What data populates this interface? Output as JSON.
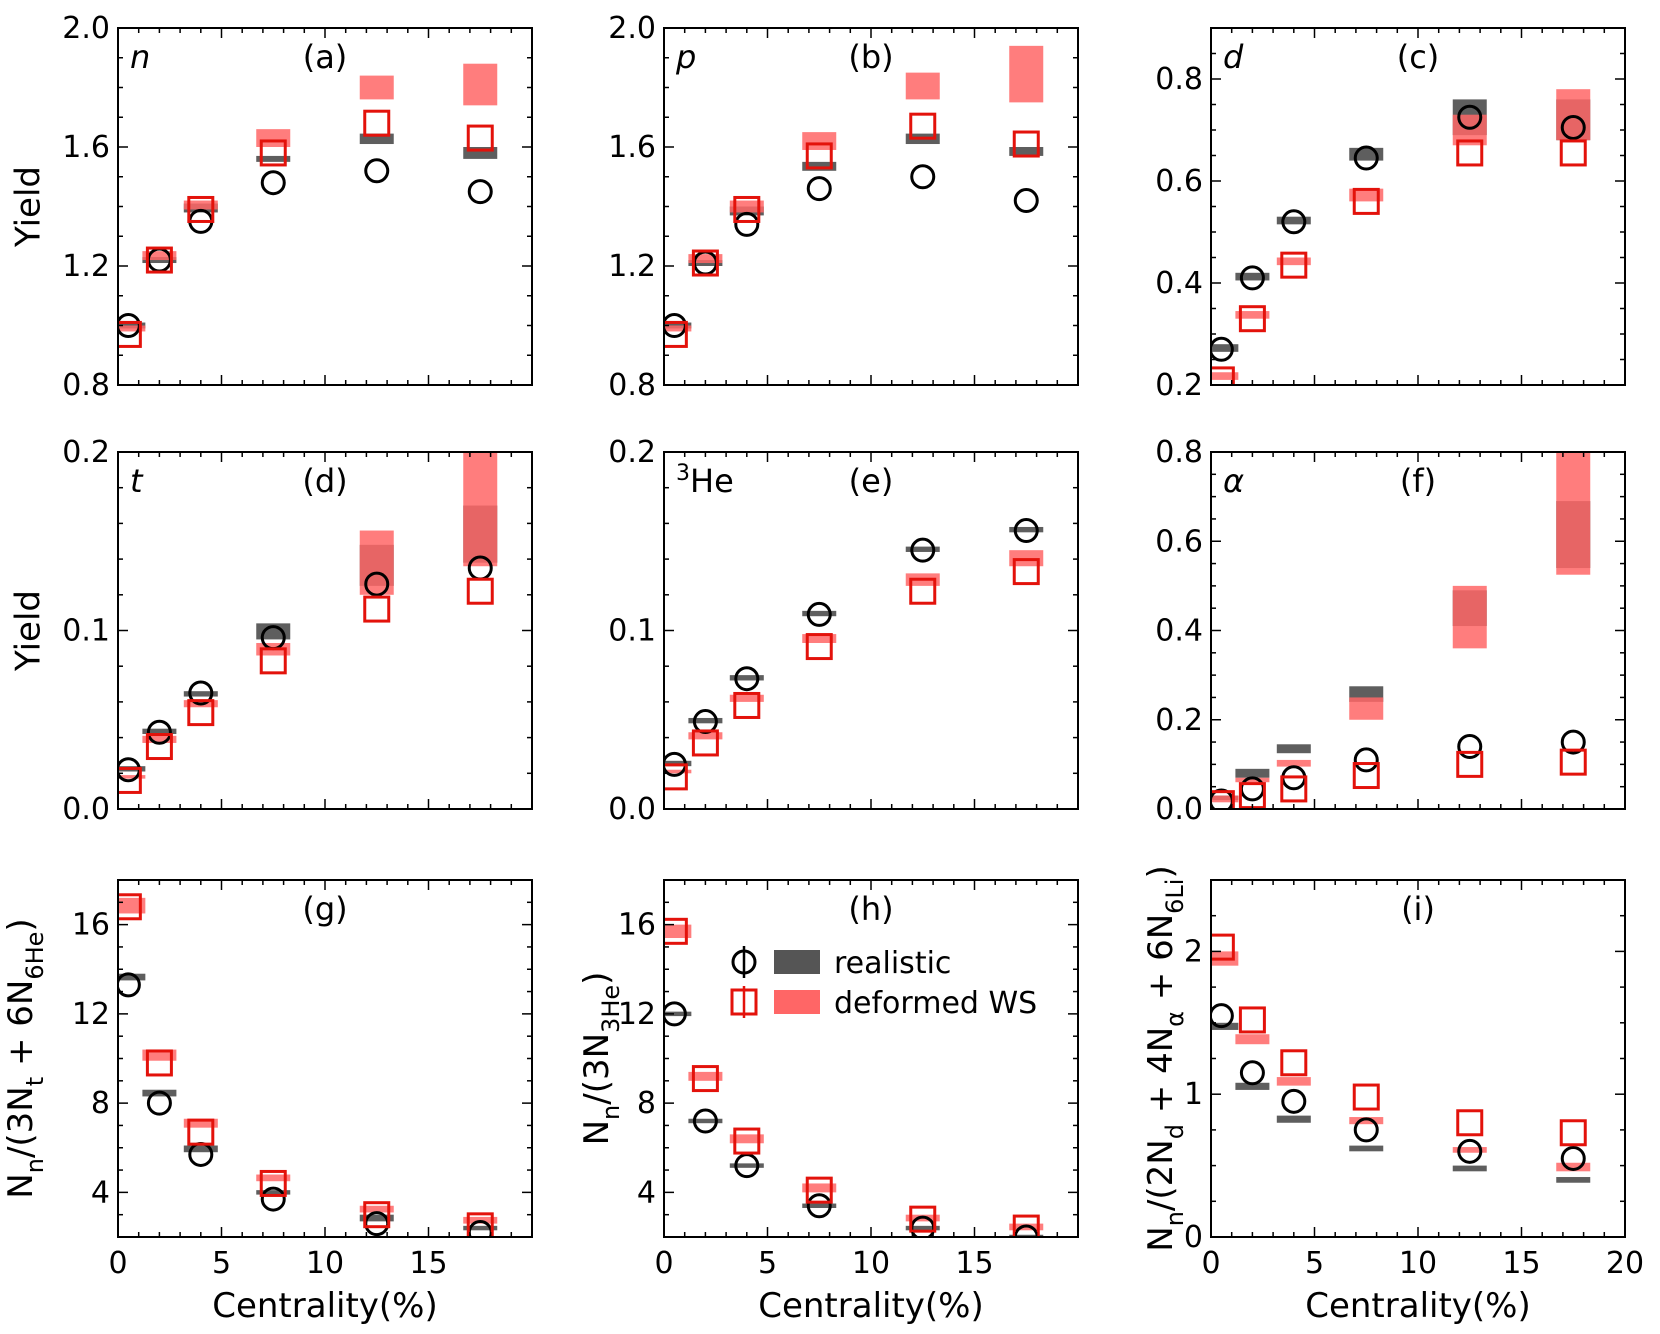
{
  "figure": {
    "x_axis_title": "Centrality(%)",
    "colors": {
      "realistic_marker": "#000000",
      "realistic_band": "#555555",
      "deformed_marker": "#e3120b",
      "deformed_band": "#ff6666",
      "frame": "#000000"
    },
    "legend": {
      "panel": "h",
      "placement": "center-right",
      "entries": [
        {
          "label": "realistic",
          "marker": "circle",
          "color": "#000000",
          "band_color": "#555555"
        },
        {
          "label": "deformed WS",
          "marker": "square",
          "color": "#e3120b",
          "band_color": "#ff6666"
        }
      ]
    }
  },
  "chart_data": [
    {
      "id": "a",
      "panel_tag": "(a)",
      "species_label": "n",
      "species_style": "italic",
      "type": "scatter",
      "ylabel": "Yield",
      "show_xticklabels": false,
      "xlim": [
        0,
        20
      ],
      "xticks": [
        0,
        5,
        10,
        15
      ],
      "xtick_labels": [
        "0",
        "5",
        "10",
        "15"
      ],
      "ylim": [
        0.8,
        2.0
      ],
      "yticks": [
        0.8,
        1.2,
        1.6,
        2.0
      ],
      "ytick_labels": [
        "0.8",
        "1.2",
        "1.6",
        "2.0"
      ],
      "minor_y": 0.1,
      "x": [
        0.5,
        2,
        4,
        7.5,
        12.5,
        17.5
      ],
      "series": [
        {
          "name": "realistic",
          "marker": "circle",
          "values": [
            1.0,
            1.22,
            1.35,
            1.48,
            1.52,
            1.45
          ],
          "band": [
            [
              0.99,
              1.01
            ],
            [
              1.21,
              1.23
            ],
            [
              1.38,
              1.41
            ],
            [
              1.55,
              1.57
            ],
            [
              1.61,
              1.645
            ],
            [
              1.56,
              1.6
            ]
          ]
        },
        {
          "name": "deformed WS",
          "marker": "square",
          "values": [
            0.97,
            1.22,
            1.39,
            1.58,
            1.68,
            1.63
          ],
          "band": [
            [
              0.98,
              1.0
            ],
            [
              1.22,
              1.25
            ],
            [
              1.39,
              1.42
            ],
            [
              1.6,
              1.66
            ],
            [
              1.76,
              1.84
            ],
            [
              1.74,
              1.88
            ]
          ]
        }
      ]
    },
    {
      "id": "b",
      "panel_tag": "(b)",
      "species_label": "p",
      "species_style": "italic",
      "type": "scatter",
      "ylabel": "",
      "show_xticklabels": false,
      "xlim": [
        0,
        20
      ],
      "xticks": [
        0,
        5,
        10,
        15
      ],
      "xtick_labels": [
        "0",
        "5",
        "10",
        "15"
      ],
      "ylim": [
        0.8,
        2.0
      ],
      "yticks": [
        0.8,
        1.2,
        1.6,
        2.0
      ],
      "ytick_labels": [
        "0.8",
        "1.2",
        "1.6",
        "2.0"
      ],
      "minor_y": 0.1,
      "x": [
        0.5,
        2,
        4,
        7.5,
        12.5,
        17.5
      ],
      "series": [
        {
          "name": "realistic",
          "marker": "circle",
          "values": [
            1.0,
            1.21,
            1.34,
            1.46,
            1.5,
            1.42
          ],
          "band": [
            [
              0.99,
              1.01
            ],
            [
              1.2,
              1.22
            ],
            [
              1.37,
              1.4
            ],
            [
              1.52,
              1.55
            ],
            [
              1.61,
              1.645
            ],
            [
              1.57,
              1.6
            ]
          ]
        },
        {
          "name": "deformed WS",
          "marker": "square",
          "values": [
            0.97,
            1.21,
            1.39,
            1.57,
            1.67,
            1.61
          ],
          "band": [
            [
              0.98,
              1.0
            ],
            [
              1.21,
              1.24
            ],
            [
              1.38,
              1.42
            ],
            [
              1.59,
              1.65
            ],
            [
              1.76,
              1.85
            ],
            [
              1.75,
              1.94
            ]
          ]
        }
      ]
    },
    {
      "id": "c",
      "panel_tag": "(c)",
      "species_label": "d",
      "species_style": "italic",
      "type": "scatter",
      "ylabel": "",
      "show_xticklabels": false,
      "xlim": [
        0,
        20
      ],
      "xticks": [
        0,
        5,
        10,
        15
      ],
      "xtick_labels": [
        "0",
        "5",
        "10",
        "15"
      ],
      "ylim": [
        0.2,
        0.9
      ],
      "yticks": [
        0.2,
        0.4,
        0.6,
        0.8
      ],
      "ytick_labels": [
        "0.2",
        "0.4",
        "0.6",
        "0.8"
      ],
      "minor_y": 0.05,
      "x": [
        0.5,
        2,
        4,
        7.5,
        12.5,
        17.5
      ],
      "series": [
        {
          "name": "realistic",
          "marker": "circle",
          "values": [
            0.27,
            0.41,
            0.52,
            0.645,
            0.725,
            0.705
          ],
          "band": [
            [
              0.265,
              0.28
            ],
            [
              0.405,
              0.42
            ],
            [
              0.515,
              0.53
            ],
            [
              0.64,
              0.665
            ],
            [
              0.69,
              0.76
            ],
            [
              0.68,
              0.76
            ]
          ]
        },
        {
          "name": "deformed WS",
          "marker": "square",
          "values": [
            0.21,
            0.33,
            0.435,
            0.56,
            0.655,
            0.655
          ],
          "band": [
            [
              0.21,
              0.225
            ],
            [
              0.33,
              0.345
            ],
            [
              0.435,
              0.45
            ],
            [
              0.56,
              0.585
            ],
            [
              0.67,
              0.73
            ],
            [
              0.68,
              0.78
            ]
          ]
        }
      ]
    },
    {
      "id": "d",
      "panel_tag": "(d)",
      "species_label": "t",
      "species_style": "italic",
      "type": "scatter",
      "ylabel": "Yield",
      "show_xticklabels": false,
      "xlim": [
        0,
        20
      ],
      "xticks": [
        0,
        5,
        10,
        15
      ],
      "xtick_labels": [
        "0",
        "5",
        "10",
        "15"
      ],
      "ylim": [
        0.0,
        0.2
      ],
      "yticks": [
        0.0,
        0.1,
        0.2
      ],
      "ytick_labels": [
        "0.0",
        "0.1",
        "0.2"
      ],
      "minor_y": 0.02,
      "x": [
        0.5,
        2,
        4,
        7.5,
        12.5,
        17.5
      ],
      "series": [
        {
          "name": "realistic",
          "marker": "circle",
          "values": [
            0.022,
            0.043,
            0.065,
            0.096,
            0.126,
            0.135
          ],
          "band": [
            [
              0.021,
              0.024
            ],
            [
              0.042,
              0.045
            ],
            [
              0.063,
              0.066
            ],
            [
              0.095,
              0.104
            ],
            [
              0.125,
              0.148
            ],
            [
              0.138,
              0.17
            ]
          ]
        },
        {
          "name": "deformed WS",
          "marker": "square",
          "values": [
            0.016,
            0.035,
            0.054,
            0.083,
            0.112,
            0.122
          ],
          "band": [
            [
              0.017,
              0.019
            ],
            [
              0.037,
              0.041
            ],
            [
              0.057,
              0.061
            ],
            [
              0.086,
              0.093
            ],
            [
              0.12,
              0.156
            ],
            [
              0.136,
              0.2
            ]
          ]
        }
      ]
    },
    {
      "id": "e",
      "panel_tag": "(e)",
      "species_label": "³He",
      "species_style": "normal",
      "type": "scatter",
      "ylabel": "",
      "show_xticklabels": false,
      "xlim": [
        0,
        20
      ],
      "xticks": [
        0,
        5,
        10,
        15
      ],
      "xtick_labels": [
        "0",
        "5",
        "10",
        "15"
      ],
      "ylim": [
        0.0,
        0.2
      ],
      "yticks": [
        0.0,
        0.1,
        0.2
      ],
      "ytick_labels": [
        "0.0",
        "0.1",
        "0.2"
      ],
      "minor_y": 0.02,
      "x": [
        0.5,
        2,
        4,
        7.5,
        12.5,
        17.5
      ],
      "series": [
        {
          "name": "realistic",
          "marker": "circle",
          "values": [
            0.025,
            0.049,
            0.073,
            0.109,
            0.145,
            0.156
          ],
          "band": [
            [
              0.024,
              0.027
            ],
            [
              0.048,
              0.051
            ],
            [
              0.072,
              0.075
            ],
            [
              0.108,
              0.111
            ],
            [
              0.144,
              0.147
            ],
            [
              0.155,
              0.158
            ]
          ]
        },
        {
          "name": "deformed WS",
          "marker": "square",
          "values": [
            0.018,
            0.037,
            0.058,
            0.091,
            0.122,
            0.133
          ],
          "band": [
            [
              0.02,
              0.022
            ],
            [
              0.039,
              0.043
            ],
            [
              0.06,
              0.064
            ],
            [
              0.093,
              0.098
            ],
            [
              0.125,
              0.132
            ],
            [
              0.136,
              0.145
            ]
          ]
        }
      ]
    },
    {
      "id": "f",
      "panel_tag": "(f)",
      "species_label": "α",
      "species_style": "italic",
      "type": "scatter",
      "ylabel": "",
      "show_xticklabels": false,
      "xlim": [
        0,
        20
      ],
      "xticks": [
        0,
        5,
        10,
        15
      ],
      "xtick_labels": [
        "0",
        "5",
        "10",
        "15"
      ],
      "ylim": [
        0.0,
        0.8
      ],
      "yticks": [
        0.0,
        0.2,
        0.4,
        0.6,
        0.8
      ],
      "ytick_labels": [
        "0.0",
        "0.2",
        "0.4",
        "0.6",
        "0.8"
      ],
      "minor_y": 0.05,
      "x": [
        0.5,
        2,
        4,
        7.5,
        12.5,
        17.5
      ],
      "series": [
        {
          "name": "realistic",
          "marker": "circle",
          "values": [
            0.018,
            0.045,
            0.07,
            0.11,
            0.14,
            0.15
          ],
          "band": [
            [
              0.02,
              0.03
            ],
            [
              0.07,
              0.09
            ],
            [
              0.125,
              0.145
            ],
            [
              0.24,
              0.275
            ],
            [
              0.41,
              0.49
            ],
            [
              0.54,
              0.69
            ]
          ]
        },
        {
          "name": "deformed WS",
          "marker": "square",
          "values": [
            0.012,
            0.03,
            0.045,
            0.075,
            0.1,
            0.105
          ],
          "band": [
            [
              0.015,
              0.03
            ],
            [
              0.06,
              0.07
            ],
            [
              0.095,
              0.11
            ],
            [
              0.2,
              0.25
            ],
            [
              0.36,
              0.5
            ],
            [
              0.525,
              0.8
            ]
          ]
        }
      ]
    },
    {
      "id": "g",
      "panel_tag": "(g)",
      "species_label": "",
      "species_style": "normal",
      "type": "scatter",
      "ylabel": "Nn/(3Nt + 6N6He)",
      "show_xticklabels": true,
      "xlim": [
        0,
        20
      ],
      "xticks": [
        0,
        5,
        10,
        15
      ],
      "xtick_labels": [
        "0",
        "5",
        "10",
        "15"
      ],
      "ylim": [
        2,
        18
      ],
      "yticks": [
        4,
        8,
        12,
        16
      ],
      "ytick_labels": [
        "4",
        "8",
        "12",
        "16"
      ],
      "minor_y": 1,
      "x": [
        0.5,
        2,
        4,
        7.5,
        12.5,
        17.5
      ],
      "series": [
        {
          "name": "realistic",
          "marker": "circle",
          "values": [
            13.3,
            8.0,
            5.7,
            3.7,
            2.6,
            2.2
          ],
          "band": [
            [
              13.5,
              13.8
            ],
            [
              8.3,
              8.6
            ],
            [
              5.8,
              6.1
            ],
            [
              3.9,
              4.1
            ],
            [
              2.7,
              3.0
            ],
            [
              2.3,
              2.5
            ]
          ]
        },
        {
          "name": "deformed WS",
          "marker": "square",
          "values": [
            16.8,
            9.8,
            6.7,
            4.4,
            3.0,
            2.5
          ],
          "band": [
            [
              16.5,
              17.2
            ],
            [
              9.9,
              10.4
            ],
            [
              6.9,
              7.3
            ],
            [
              4.5,
              4.8
            ],
            [
              3.1,
              3.4
            ],
            [
              2.6,
              2.9
            ]
          ]
        }
      ]
    },
    {
      "id": "h",
      "panel_tag": "(h)",
      "species_label": "",
      "species_style": "normal",
      "type": "scatter",
      "ylabel": "Nn/(3N3He)",
      "show_xticklabels": true,
      "xlim": [
        0,
        20
      ],
      "xticks": [
        0,
        5,
        10,
        15
      ],
      "xtick_labels": [
        "0",
        "5",
        "10",
        "15"
      ],
      "ylim": [
        2,
        18
      ],
      "yticks": [
        4,
        8,
        12,
        16
      ],
      "ytick_labels": [
        "4",
        "8",
        "12",
        "16"
      ],
      "minor_y": 1,
      "x": [
        0.5,
        2,
        4,
        7.5,
        12.5,
        17.5
      ],
      "series": [
        {
          "name": "realistic",
          "marker": "circle",
          "values": [
            12.0,
            7.2,
            5.2,
            3.4,
            2.4,
            2.0
          ],
          "band": [
            [
              11.9,
              12.1
            ],
            [
              7.1,
              7.3
            ],
            [
              5.1,
              5.3
            ],
            [
              3.3,
              3.5
            ],
            [
              2.3,
              2.5
            ],
            [
              1.9,
              2.1
            ]
          ]
        },
        {
          "name": "deformed WS",
          "marker": "square",
          "values": [
            15.7,
            9.1,
            6.3,
            4.1,
            2.8,
            2.4
          ],
          "band": [
            [
              15.4,
              16.0
            ],
            [
              9.0,
              9.4
            ],
            [
              6.2,
              6.6
            ],
            [
              4.0,
              4.4
            ],
            [
              2.7,
              3.0
            ],
            [
              2.3,
              2.6
            ]
          ]
        }
      ]
    },
    {
      "id": "i",
      "panel_tag": "(i)",
      "species_label": "",
      "species_style": "normal",
      "type": "scatter",
      "ylabel": "Nn/(2Nd + 4Nα + 6N6Li)",
      "show_xticklabels": true,
      "xlim": [
        0,
        20
      ],
      "xticks": [
        0,
        5,
        10,
        15,
        20
      ],
      "xtick_labels": [
        "0",
        "5",
        "10",
        "15",
        "20"
      ],
      "ylim": [
        0,
        2.5
      ],
      "yticks": [
        0,
        1,
        2
      ],
      "ytick_labels": [
        "0",
        "1",
        "2"
      ],
      "minor_y": 0.25,
      "x": [
        0.5,
        2,
        4,
        7.5,
        12.5,
        17.5
      ],
      "series": [
        {
          "name": "realistic",
          "marker": "circle",
          "values": [
            1.55,
            1.15,
            0.95,
            0.75,
            0.6,
            0.55
          ],
          "band": [
            [
              1.45,
              1.5
            ],
            [
              1.03,
              1.08
            ],
            [
              0.8,
              0.85
            ],
            [
              0.6,
              0.64
            ],
            [
              0.46,
              0.5
            ],
            [
              0.38,
              0.42
            ]
          ]
        },
        {
          "name": "deformed WS",
          "marker": "square",
          "values": [
            2.03,
            1.52,
            1.22,
            0.98,
            0.8,
            0.73
          ],
          "band": [
            [
              1.9,
              2.0
            ],
            [
              1.35,
              1.42
            ],
            [
              1.06,
              1.12
            ],
            [
              0.79,
              0.84
            ],
            [
              0.59,
              0.63
            ],
            [
              0.46,
              0.52
            ]
          ]
        }
      ]
    }
  ]
}
